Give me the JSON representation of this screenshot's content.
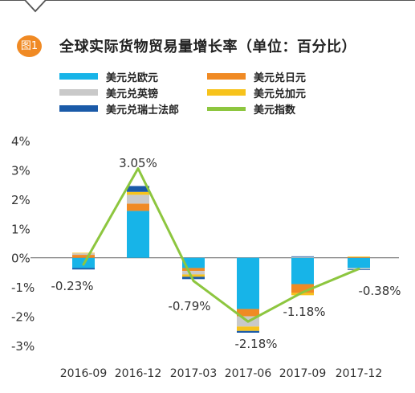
{
  "header": {
    "badge": "图1",
    "title": "全球实际货物贸易量增长率（单位：百分比）"
  },
  "colors": {
    "eur": "#17b4e8",
    "jpy": "#f08a24",
    "gbp": "#c9c9c9",
    "cad": "#f7c31c",
    "chf": "#1a5aa8",
    "index": "#8dc63f",
    "axis_text": "#333333",
    "badge": "#f08a24"
  },
  "chart_data": {
    "type": "bar",
    "title": "全球实际货物贸易量增长率（单位：百分比）",
    "categories": [
      "2016-09",
      "2016-12",
      "2017-03",
      "2017-06",
      "2017-09",
      "2017-12"
    ],
    "ylim": [
      -3,
      4
    ],
    "yticks": [
      "4%",
      "3%",
      "2%",
      "1%",
      "0%",
      "-1%",
      "-2%",
      "-3%"
    ],
    "ytick_values": [
      4,
      3,
      2,
      1,
      0,
      -1,
      -2,
      -3
    ],
    "stacked": true,
    "legend_position": "top",
    "series": [
      {
        "name": "美元兑欧元",
        "key": "eur",
        "values": [
          -0.35,
          1.6,
          -0.35,
          -1.75,
          -0.9,
          -0.35
        ]
      },
      {
        "name": "美元兑日元",
        "key": "jpy",
        "values": [
          0.1,
          0.25,
          -0.1,
          -0.25,
          -0.3,
          0.02
        ]
      },
      {
        "name": "美元兑英镑",
        "key": "gbp",
        "values": [
          0.05,
          0.3,
          -0.12,
          -0.35,
          0.03,
          -0.05
        ]
      },
      {
        "name": "美元兑加元",
        "key": "cad",
        "values": [
          0.02,
          0.1,
          -0.08,
          -0.15,
          -0.08,
          0.02
        ]
      },
      {
        "name": "美元兑瑞士法郎",
        "key": "chf",
        "values": [
          -0.05,
          0.2,
          -0.08,
          -0.06,
          0.02,
          -0.02
        ]
      }
    ],
    "line": {
      "name": "美元指数",
      "key": "index",
      "values": [
        -0.23,
        3.05,
        -0.79,
        -2.18,
        -1.18,
        -0.38
      ],
      "labels": [
        "-0.23%",
        "3.05%",
        "-0.79%",
        "-2.18%",
        "-1.18%",
        "-0.38%"
      ]
    }
  },
  "legend": [
    {
      "label": "美元兑欧元",
      "key": "eur"
    },
    {
      "label": "美元兑日元",
      "key": "jpy"
    },
    {
      "label": "美元兑英镑",
      "key": "gbp"
    },
    {
      "label": "美元兑加元",
      "key": "cad"
    },
    {
      "label": "美元兑瑞士法郎",
      "key": "chf"
    },
    {
      "label": "美元指数",
      "key": "index"
    }
  ]
}
